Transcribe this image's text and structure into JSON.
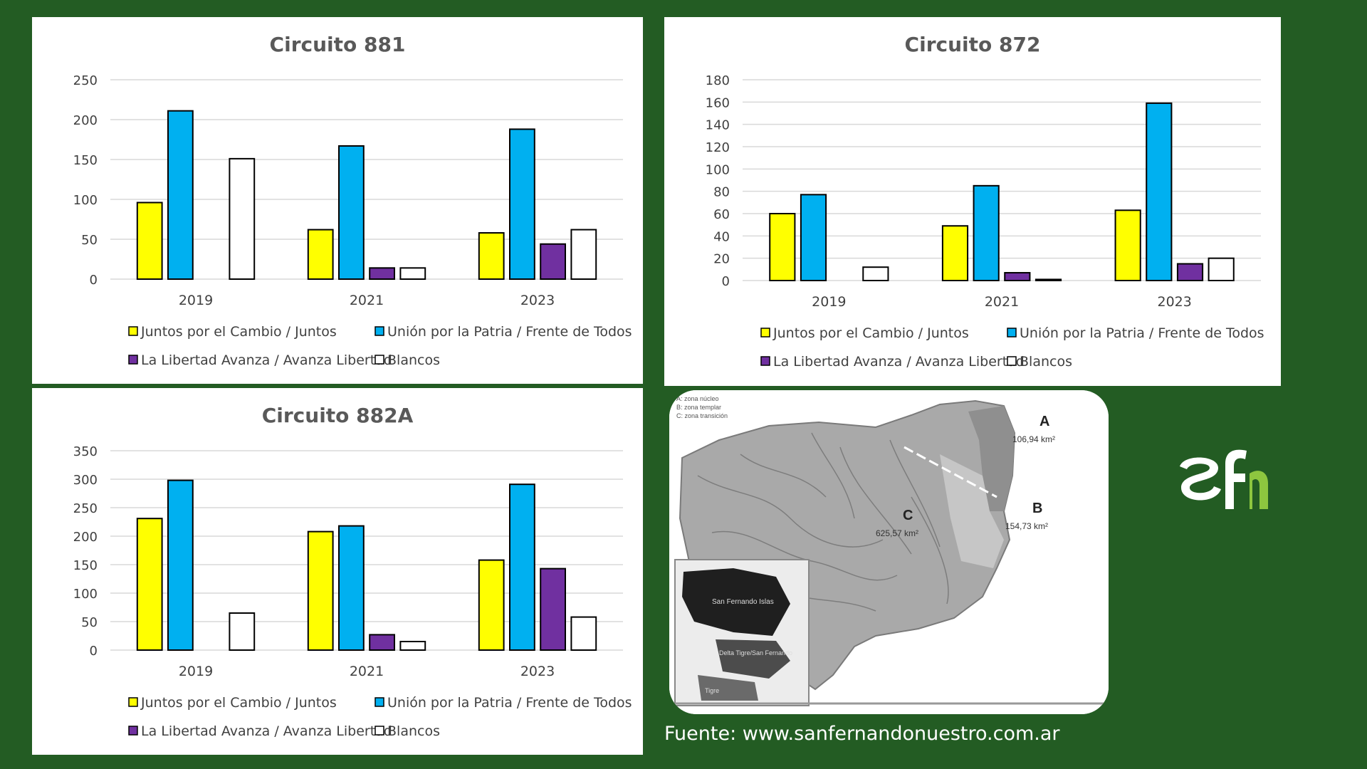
{
  "chart_data": [
    {
      "type": "bar",
      "title": "Circuito 881",
      "categories": [
        "2019",
        "2021",
        "2023"
      ],
      "ylim": [
        0,
        250
      ],
      "yticks": [
        0,
        50,
        100,
        150,
        200,
        250
      ],
      "grid": true,
      "legend_position": "bottom",
      "series": [
        {
          "name": "Juntos por el Cambio / Juntos",
          "color": "#ffff00",
          "values": [
            96,
            62,
            58
          ]
        },
        {
          "name": "Unión por la Patria / Frente de Todos",
          "color": "#00b0f0",
          "values": [
            211,
            167,
            188
          ]
        },
        {
          "name": "La Libertad Avanza / Avanza Libertad",
          "color": "#7030a0",
          "values": [
            0,
            14,
            44
          ]
        },
        {
          "name": "Blancos",
          "color": "#ffffff",
          "values": [
            151,
            14,
            62
          ]
        }
      ]
    },
    {
      "type": "bar",
      "title": "Circuito 872",
      "categories": [
        "2019",
        "2021",
        "2023"
      ],
      "ylim": [
        0,
        180
      ],
      "yticks": [
        0,
        20,
        40,
        60,
        80,
        100,
        120,
        140,
        160,
        180
      ],
      "grid": true,
      "legend_position": "bottom",
      "series": [
        {
          "name": "Juntos por el Cambio / Juntos",
          "color": "#ffff00",
          "values": [
            60,
            49,
            63
          ]
        },
        {
          "name": "Unión por la Patria / Frente de Todos",
          "color": "#00b0f0",
          "values": [
            77,
            85,
            159
          ]
        },
        {
          "name": "La Libertad Avanza / Avanza Libertad",
          "color": "#7030a0",
          "values": [
            0,
            7,
            15
          ]
        },
        {
          "name": "Blancos",
          "color": "#ffffff",
          "values": [
            12,
            1,
            20
          ]
        }
      ]
    },
    {
      "type": "bar",
      "title": "Circuito 882A",
      "categories": [
        "2019",
        "2021",
        "2023"
      ],
      "ylim": [
        0,
        350
      ],
      "yticks": [
        0,
        50,
        100,
        150,
        200,
        250,
        300,
        350
      ],
      "grid": true,
      "legend_position": "bottom",
      "series": [
        {
          "name": "Juntos por el Cambio / Juntos",
          "color": "#ffff00",
          "values": [
            231,
            208,
            158
          ]
        },
        {
          "name": "Unión por la Patria / Frente de Todos",
          "color": "#00b0f0",
          "values": [
            298,
            218,
            291
          ]
        },
        {
          "name": "La Libertad Avanza / Avanza Libertad",
          "color": "#7030a0",
          "values": [
            0,
            27,
            143
          ]
        },
        {
          "name": "Blancos",
          "color": "#ffffff",
          "values": [
            65,
            15,
            58
          ]
        }
      ]
    }
  ],
  "map": {
    "legend": [
      "A: zona núcleo",
      "B: zona templar",
      "C: zona transición"
    ],
    "zones": [
      {
        "letter": "A",
        "area": "106,94 km²"
      },
      {
        "letter": "B",
        "area": "154,73 km²"
      },
      {
        "letter": "C",
        "area": "625,57 km²"
      }
    ],
    "inset_labels": [
      "San Fernando Islas",
      "Delta Tigre/San Fernando",
      "Tigre"
    ]
  },
  "source": "Fuente: www.sanfernandonuestro.com.ar",
  "logo": {
    "text": "sfn",
    "color_main": "#ffffff",
    "color_accent": "#8dc63f"
  }
}
